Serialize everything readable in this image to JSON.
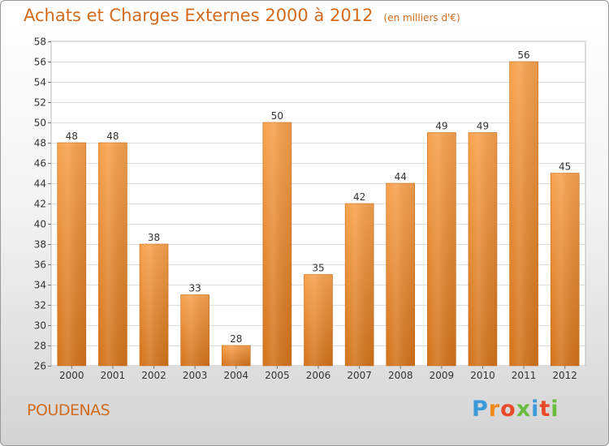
{
  "chart_data": {
    "type": "bar",
    "title": "Achats et Charges Externes 2000 à 2012",
    "subtitle": "(en milliers d'€)",
    "categories": [
      "2000",
      "2001",
      "2002",
      "2003",
      "2004",
      "2005",
      "2006",
      "2007",
      "2008",
      "2009",
      "2010",
      "2011",
      "2012"
    ],
    "values": [
      48,
      48,
      38,
      33,
      28,
      50,
      35,
      42,
      44,
      49,
      49,
      56,
      45
    ],
    "xlabel": "",
    "ylabel": "",
    "ylim": [
      26,
      58
    ],
    "yticks": [
      26,
      28,
      30,
      32,
      34,
      36,
      38,
      40,
      42,
      44,
      46,
      48,
      50,
      52,
      54,
      56,
      58
    ],
    "grid": true,
    "bar_color_top": "#f7a24e",
    "bar_color_bottom": "#d2731b"
  },
  "footer": {
    "city": "POUDENAS",
    "logo_text": "Proxiti",
    "logo_colors": [
      "#3a9bd8",
      "#f08a1c",
      "#e84a2a",
      "#6abd3c",
      "#3a9bd8",
      "#e84a2a",
      "#6abd3c"
    ]
  }
}
